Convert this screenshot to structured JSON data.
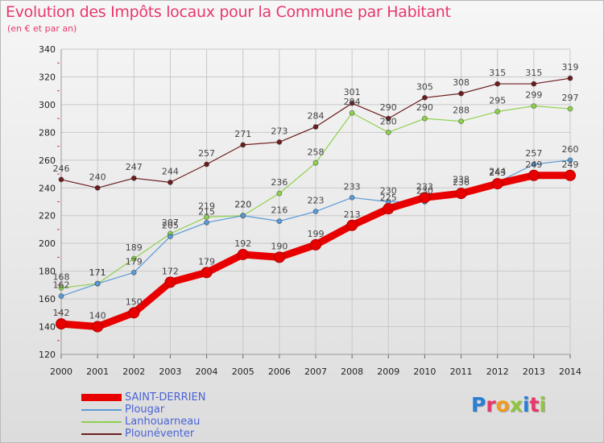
{
  "header": {
    "title": "Evolution des Impôts locaux pour la Commune par Habitant",
    "subtitle": "(en € et par an)"
  },
  "brand": {
    "name": "Proxiti"
  },
  "chart_data": {
    "type": "line",
    "title": "Evolution des Impôts locaux pour la Commune par Habitant",
    "subtitle": "(en € et par an)",
    "xlabel": "",
    "ylabel": "",
    "categories": [
      "2000",
      "2001",
      "2002",
      "2003",
      "2004",
      "2005",
      "2006",
      "2007",
      "2008",
      "2009",
      "2010",
      "2011",
      "2012",
      "2013",
      "2014"
    ],
    "ylim": [
      120,
      340
    ],
    "yticks": [
      120,
      140,
      160,
      180,
      200,
      220,
      240,
      260,
      280,
      300,
      320,
      340
    ],
    "grid": true,
    "legend_position": "bottom-left",
    "series": [
      {
        "name": "SAINT-DERRIEN",
        "color": "#e80000",
        "values": [
          142,
          140,
          150,
          172,
          179,
          192,
          190,
          199,
          213,
          225,
          233,
          236,
          243,
          249,
          249
        ]
      },
      {
        "name": "Plougar",
        "color": "#5b9bd5",
        "values": [
          162,
          171,
          179,
          205,
          215,
          220,
          216,
          223,
          233,
          230,
          230,
          238,
          244,
          257,
          260
        ]
      },
      {
        "name": "Lanhouarneau",
        "color": "#8fd14f",
        "values": [
          168,
          171,
          189,
          207,
          219,
          220,
          236,
          258,
          294,
          280,
          290,
          288,
          295,
          299,
          297
        ]
      },
      {
        "name": "Plounéventer",
        "color": "#6b1e1e",
        "values": [
          246,
          240,
          247,
          244,
          257,
          271,
          273,
          284,
          301,
          290,
          305,
          308,
          315,
          315,
          319
        ]
      }
    ],
    "data_labels": [
      [
        142,
        140,
        150,
        172,
        179,
        192,
        190,
        199,
        213,
        225,
        233,
        236,
        243,
        249,
        249
      ],
      [
        162,
        171,
        179,
        205,
        215,
        220,
        216,
        223,
        233,
        230,
        230,
        238,
        244,
        257,
        260
      ],
      [
        168,
        171,
        189,
        207,
        219,
        220,
        236,
        258,
        294,
        280,
        290,
        288,
        295,
        299,
        297
      ],
      [
        246,
        240,
        247,
        244,
        257,
        271,
        273,
        284,
        301,
        290,
        305,
        308,
        315,
        315,
        319
      ]
    ]
  }
}
